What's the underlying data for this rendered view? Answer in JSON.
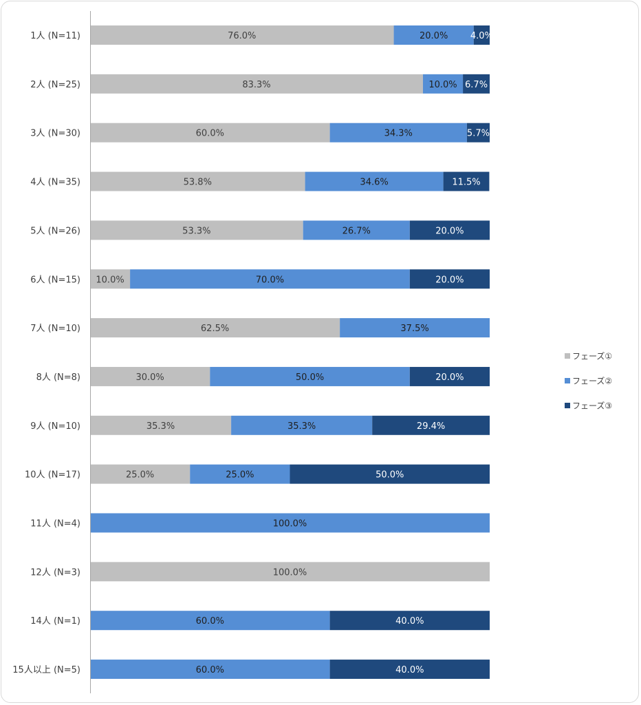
{
  "chart_data": {
    "type": "bar",
    "orientation": "horizontal",
    "stacked": "percent",
    "title": "",
    "xlabel": "",
    "ylabel": "",
    "xlim": [
      0,
      100
    ],
    "grid": false,
    "legend_position": "right",
    "categories": [
      "1人 (N=11)",
      "2人 (N=25)",
      "3人 (N=30)",
      "4人 (N=35)",
      "5人 (N=26)",
      "6人 (N=15)",
      "7人 (N=10)",
      "8人 (N=8)",
      "9人 (N=10)",
      "10人 (N=17)",
      "11人 (N=4)",
      "12人 (N=3)",
      "14人 (N=1)",
      "15人以上 (N=5)"
    ],
    "series": [
      {
        "name": "フェーズ①",
        "color": "#bfbfbf",
        "label_color": "#404040",
        "values": [
          76.0,
          83.3,
          60.0,
          53.8,
          53.3,
          10.0,
          62.5,
          30.0,
          35.3,
          25.0,
          0,
          100.0,
          0,
          0
        ]
      },
      {
        "name": "フェーズ②",
        "color": "#558ed5",
        "label_color": "#1f1f1f",
        "values": [
          20.0,
          10.0,
          34.3,
          34.6,
          26.7,
          70.0,
          37.5,
          50.0,
          35.3,
          25.0,
          100.0,
          0,
          60.0,
          60.0
        ]
      },
      {
        "name": "フェーズ③",
        "color": "#1f497d",
        "label_color": "#ffffff",
        "values": [
          4.0,
          6.7,
          5.7,
          11.5,
          20.0,
          20.0,
          0,
          20.0,
          29.4,
          50.0,
          0,
          0,
          40.0,
          40.0
        ]
      }
    ],
    "value_format": "{v}%"
  }
}
